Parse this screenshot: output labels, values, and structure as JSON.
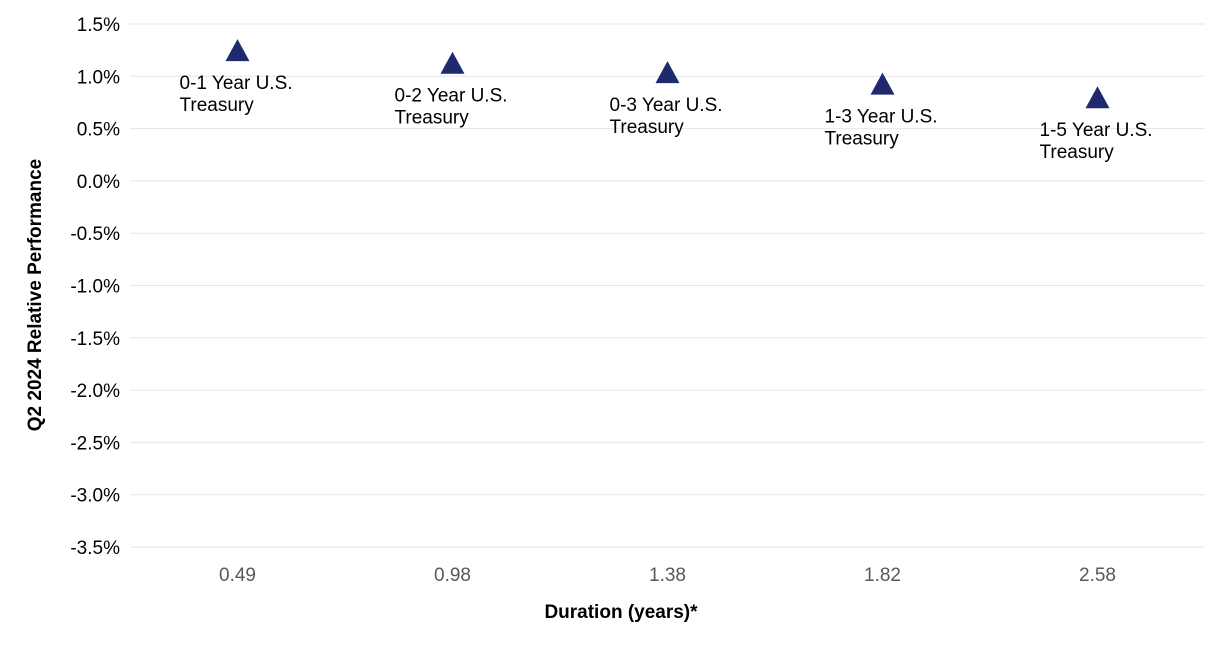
{
  "chart_data": {
    "type": "scatter",
    "xlabel": "Duration (years)*",
    "ylabel": "Q2 2024 Relative Performance",
    "categories": [
      "0.49",
      "0.98",
      "1.38",
      "1.82",
      "2.58"
    ],
    "y_ticks": [
      "1.5%",
      "1.0%",
      "0.5%",
      "0.0%",
      "-0.5%",
      "-1.0%",
      "-1.5%",
      "-2.0%",
      "-2.5%",
      "-3.0%",
      "-3.5%"
    ],
    "ylim": [
      -3.5,
      1.5
    ],
    "y_unit": "%",
    "grid": true,
    "marker": "triangle",
    "marker_color": "#1f2a6e",
    "points": [
      {
        "x": "0.49",
        "y": 1.25,
        "label_lines": [
          "0-1 Year U.S.",
          "Treasury"
        ]
      },
      {
        "x": "0.98",
        "y": 1.13,
        "label_lines": [
          "0-2 Year U.S.",
          "Treasury"
        ]
      },
      {
        "x": "1.38",
        "y": 1.04,
        "label_lines": [
          "0-3 Year U.S.",
          "Treasury"
        ]
      },
      {
        "x": "1.82",
        "y": 0.93,
        "label_lines": [
          "1-3 Year U.S.",
          "Treasury"
        ]
      },
      {
        "x": "2.58",
        "y": 0.8,
        "label_lines": [
          "1-5 Year U.S.",
          "Treasury"
        ]
      }
    ]
  }
}
